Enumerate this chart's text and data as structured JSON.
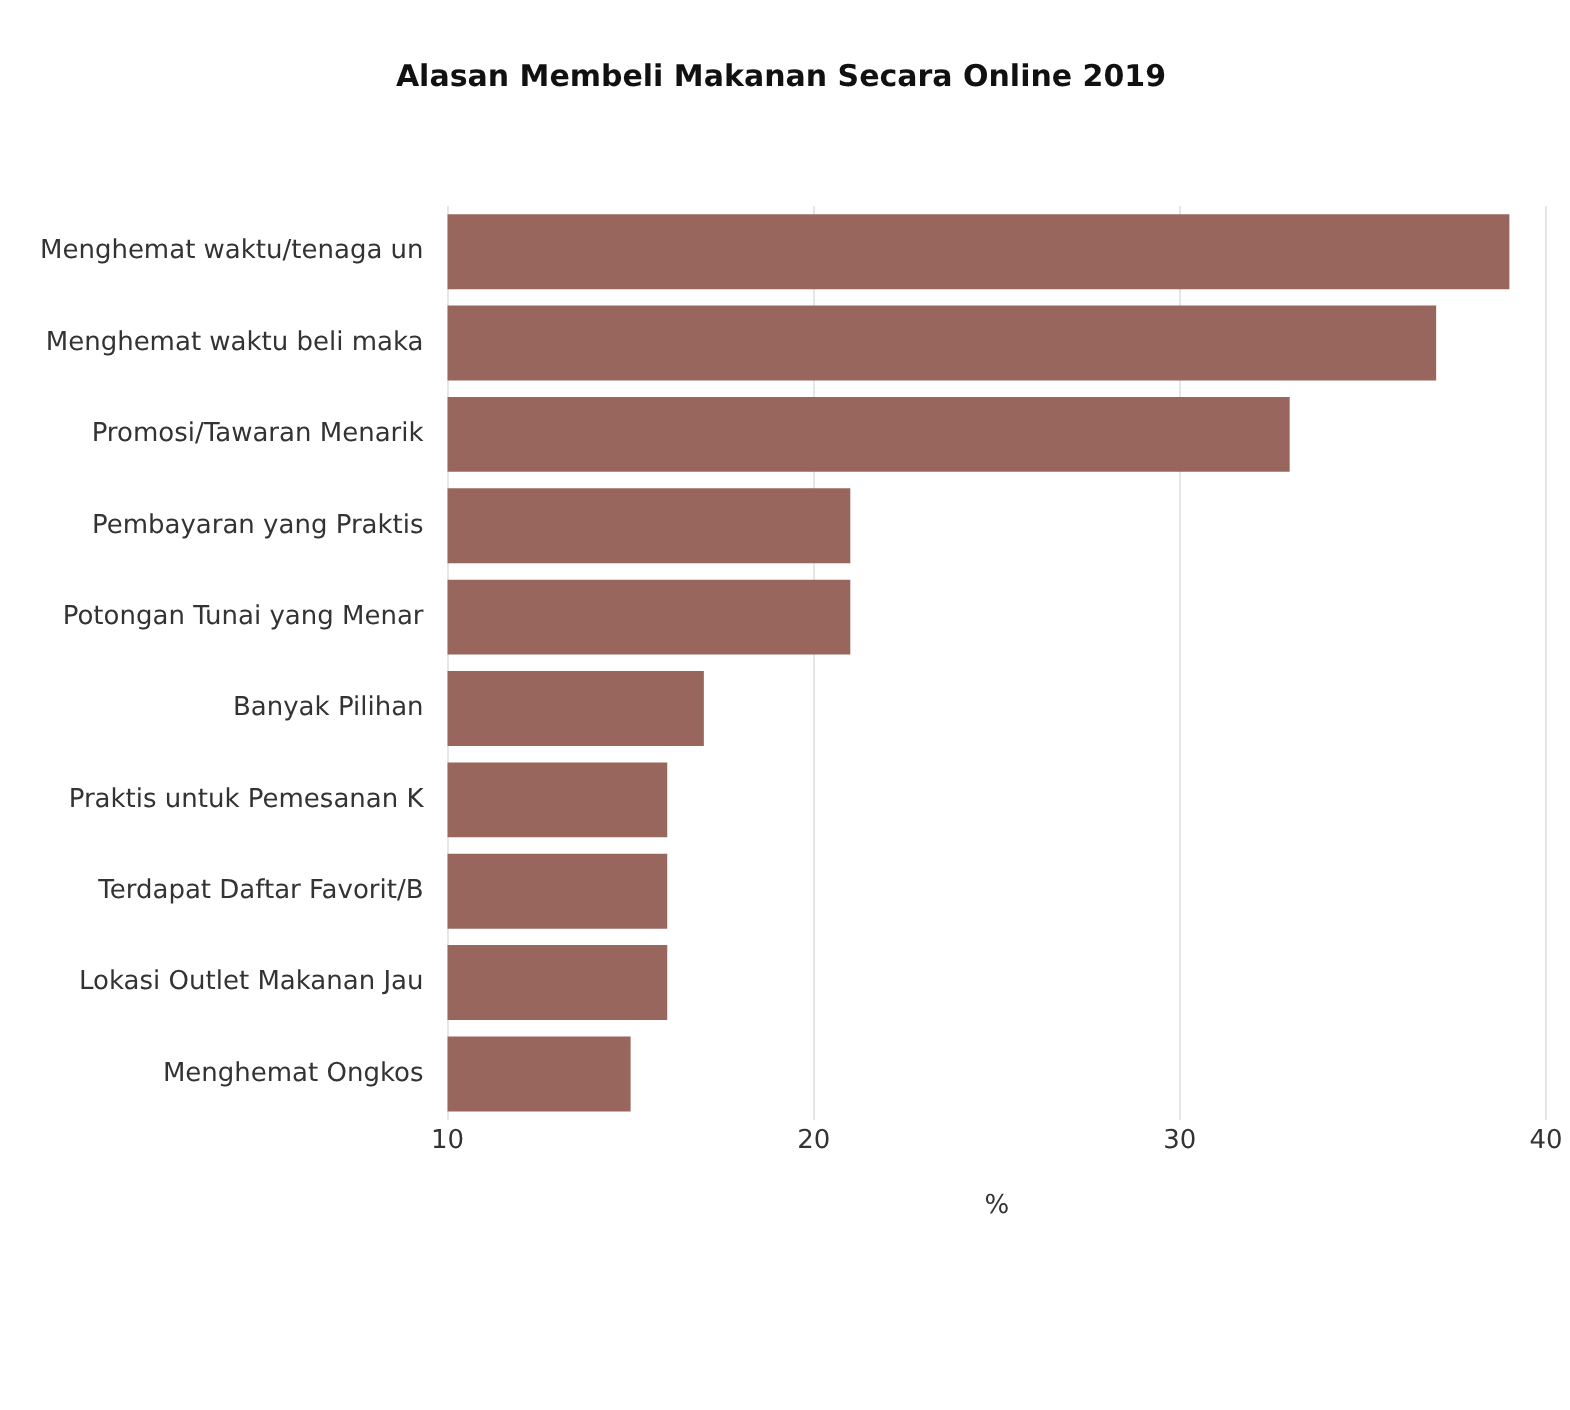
{
  "chart_data": {
    "type": "bar",
    "orientation": "horizontal",
    "title": "Alasan Membeli Makanan Secara Online 2019",
    "xlabel": "%",
    "categories": [
      "Menghemat waktu/tenaga un",
      "Menghemat waktu beli maka",
      "Promosi/Tawaran Menarik",
      "Pembayaran yang Praktis",
      "Potongan Tunai yang Menar",
      "Banyak Pilihan",
      "Praktis untuk Pemesanan K",
      "Terdapat Daftar Favorit/B",
      "Lokasi Outlet Makanan Jau",
      "Menghemat Ongkos"
    ],
    "values": [
      39,
      37,
      33,
      21,
      21,
      17,
      16,
      16,
      16,
      15
    ],
    "color": "#98665c",
    "xlim": [
      10,
      40
    ],
    "xticks": [
      10,
      20,
      30,
      40
    ],
    "grid": "x",
    "legend": false
  }
}
